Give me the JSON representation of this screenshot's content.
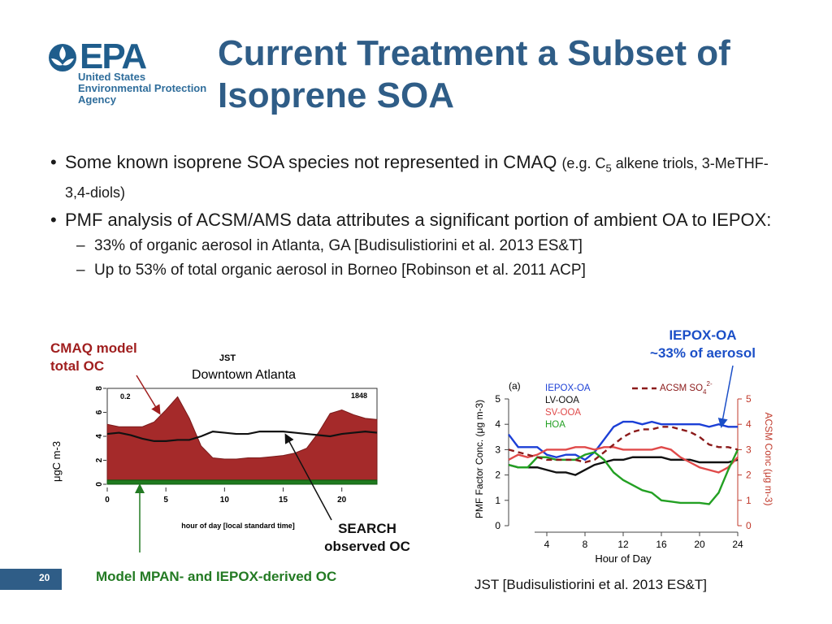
{
  "logo": {
    "wordmark": "EPA",
    "agency_lines": [
      "United States",
      "Environmental Protection",
      "Agency"
    ]
  },
  "title": {
    "line1": "Current Treatment a Subset of",
    "line2": "Isoprene SOA"
  },
  "bullets": [
    {
      "text": "Some known isoprene SOA species not represented in CMAQ ",
      "small_prefix": "(e.g. C",
      "subscript": "5",
      "small_suffix": " alkene triols, 3-MeTHF-3,4-diols)"
    },
    {
      "text": "PMF analysis of ACSM/AMS data attributes a significant portion of ambient OA to IEPOX:",
      "sub": [
        "33% of organic aerosol in Atlanta, GA [Budisulistiorini et al. 2013 ES&T]",
        "Up to 53% of total organic aerosol in Borneo [Robinson et al. 2011 ACP]"
      ]
    }
  ],
  "annotations": {
    "cmaq_line1": "CMAQ model",
    "cmaq_line2": "total OC",
    "iepox_line1": "IEPOX-OA",
    "iepox_line2": "~33% of aerosol",
    "search_line1": "SEARCH",
    "search_line2": "observed OC",
    "mpan": "Model MPAN- and IEPOX-derived OC",
    "jst_citation": "JST [Budisulistiorini et al. 2013 ES&T]"
  },
  "page_number": "20",
  "colors": {
    "title_blue": "#2f5d87",
    "model_red": "#a52a2a",
    "model_green": "#1f7a1f",
    "iepox_blue": "#1b3fd6"
  },
  "chart_data": [
    {
      "type": "area",
      "site_label": "JST",
      "subtitle": "Downtown Atlanta",
      "ylabel": "μgC m-3",
      "xlabel": "hour of day [local standard time]",
      "corner_left": "0.2",
      "corner_right": "1848",
      "xlim": [
        0,
        23
      ],
      "ylim": [
        0,
        8
      ],
      "xticks": [
        0,
        5,
        10,
        15,
        20
      ],
      "yticks": [
        0,
        2,
        4,
        6,
        8
      ],
      "x": [
        0,
        1,
        2,
        3,
        4,
        5,
        6,
        7,
        8,
        9,
        10,
        11,
        12,
        13,
        14,
        15,
        16,
        17,
        18,
        19,
        20,
        21,
        22,
        23
      ],
      "series": [
        {
          "name": "CMAQ model total OC",
          "values": [
            5.0,
            4.8,
            4.8,
            4.8,
            5.2,
            6.2,
            7.3,
            5.5,
            3.2,
            2.2,
            2.1,
            2.1,
            2.2,
            2.2,
            2.3,
            2.4,
            2.6,
            3.0,
            4.3,
            5.9,
            6.2,
            5.8,
            5.5,
            5.4
          ]
        },
        {
          "name": "Model MPAN- and IEPOX-derived OC",
          "values": [
            0.35,
            0.35,
            0.35,
            0.35,
            0.35,
            0.35,
            0.35,
            0.35,
            0.35,
            0.35,
            0.35,
            0.35,
            0.35,
            0.35,
            0.35,
            0.35,
            0.35,
            0.35,
            0.35,
            0.35,
            0.35,
            0.35,
            0.35,
            0.35
          ]
        },
        {
          "name": "SEARCH observed OC",
          "values": [
            4.2,
            4.3,
            4.1,
            3.8,
            3.6,
            3.6,
            3.7,
            3.7,
            4.0,
            4.4,
            4.3,
            4.2,
            4.2,
            4.4,
            4.4,
            4.4,
            4.3,
            4.2,
            4.1,
            4.0,
            4.2,
            4.3,
            4.4,
            4.3
          ]
        }
      ]
    },
    {
      "type": "line",
      "panel_label": "(a)",
      "xlabel": "Hour of Day",
      "ylabel_left": "PMF Factor Conc. (μg m-3)",
      "ylabel_right": "ACSM Conc (μg m-3)",
      "xlim": [
        0,
        24
      ],
      "ylim": [
        0,
        5
      ],
      "xticks": [
        4,
        8,
        12,
        16,
        20,
        24
      ],
      "yticks": [
        0,
        1,
        2,
        3,
        4,
        5
      ],
      "x": [
        0,
        1,
        2,
        3,
        4,
        5,
        6,
        7,
        8,
        9,
        10,
        11,
        12,
        13,
        14,
        15,
        16,
        17,
        18,
        19,
        20,
        21,
        22,
        23,
        24
      ],
      "series": [
        {
          "name": "IEPOX-OA",
          "values": [
            3.6,
            3.1,
            3.1,
            3.1,
            2.8,
            2.7,
            2.8,
            2.8,
            2.6,
            2.9,
            3.4,
            3.9,
            4.1,
            4.1,
            4.0,
            4.1,
            4.0,
            4.0,
            4.0,
            4.0,
            4.0,
            3.9,
            4.0,
            3.9,
            3.9
          ]
        },
        {
          "name": "LV-OOA",
          "values": [
            2.4,
            2.3,
            2.3,
            2.3,
            2.2,
            2.1,
            2.1,
            2.0,
            2.2,
            2.4,
            2.5,
            2.6,
            2.6,
            2.7,
            2.7,
            2.7,
            2.7,
            2.6,
            2.6,
            2.6,
            2.5,
            2.5,
            2.5,
            2.5,
            2.6
          ]
        },
        {
          "name": "SV-OOA",
          "values": [
            2.6,
            2.8,
            2.7,
            2.8,
            3.0,
            3.0,
            3.0,
            3.1,
            3.1,
            3.0,
            3.1,
            3.1,
            3.0,
            3.0,
            3.0,
            3.0,
            3.1,
            3.0,
            2.7,
            2.5,
            2.3,
            2.2,
            2.1,
            2.3,
            2.7
          ]
        },
        {
          "name": "HOA",
          "values": [
            2.4,
            2.3,
            2.3,
            2.7,
            2.7,
            2.6,
            2.6,
            2.6,
            2.8,
            2.9,
            2.6,
            2.1,
            1.8,
            1.6,
            1.4,
            1.3,
            1.0,
            0.95,
            0.9,
            0.9,
            0.9,
            0.85,
            1.3,
            2.2,
            3.0
          ]
        },
        {
          "name": "ACSM SO4 2-",
          "values": [
            3.0,
            2.9,
            2.8,
            2.7,
            2.6,
            2.6,
            2.6,
            2.6,
            2.5,
            2.6,
            2.9,
            3.2,
            3.5,
            3.7,
            3.8,
            3.8,
            3.9,
            3.9,
            3.8,
            3.7,
            3.5,
            3.2,
            3.1,
            3.1,
            3.0
          ]
        }
      ]
    }
  ]
}
